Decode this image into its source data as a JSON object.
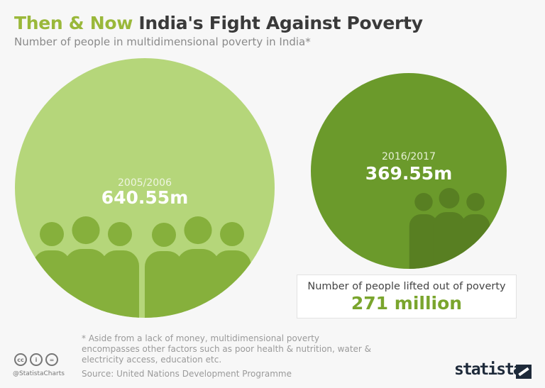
{
  "header": {
    "title_accent": "Then & Now",
    "title_main": "India's Fight Against Poverty",
    "subtitle": "Number of people in multidimensional poverty in India*"
  },
  "chart_data": {
    "type": "bubble",
    "unit": "m",
    "categories": [
      "2005/2006",
      "2016/2017"
    ],
    "values": [
      640.55,
      369.55
    ],
    "labels": [
      "640.55m",
      "369.55m"
    ],
    "colors": [
      "#b5d67a",
      "#6b9a2b"
    ]
  },
  "callout": {
    "label": "Number of people lifted out of poverty",
    "value": "271 million"
  },
  "footer": {
    "note": "* Aside from a lack of money, multidimensional poverty encompasses other factors such as poor health & nutrition, water & electricity access, education etc.",
    "source": "Source: United Nations Development Programme",
    "handle": "@StatistaCharts",
    "license_icons": [
      "cc-icon",
      "by-icon",
      "nd-icon"
    ],
    "logo": "statista"
  },
  "colors": {
    "accent": "#9ab83a",
    "light_people": "#86b03c",
    "dark_people": "#587f22"
  }
}
